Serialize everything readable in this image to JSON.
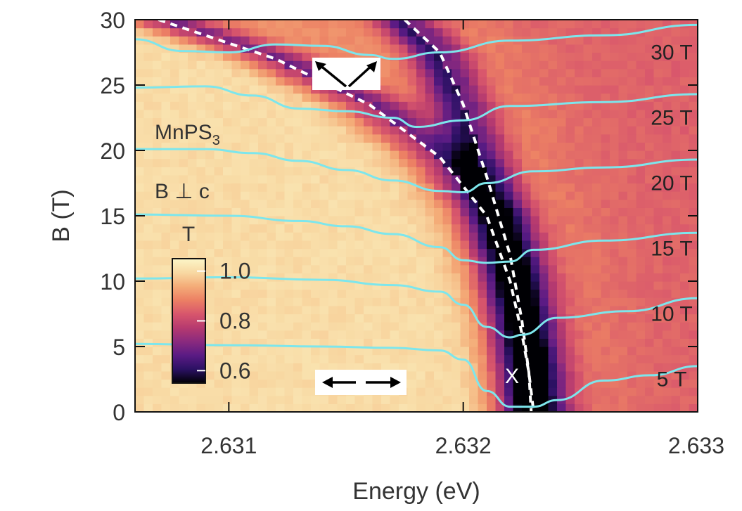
{
  "chart_data": {
    "type": "heatmap",
    "title": "",
    "xlabel": "Energy (eV)",
    "ylabel": "B (T)",
    "xlim": [
      2.6306,
      2.633
    ],
    "ylim": [
      0,
      30
    ],
    "x_ticks": [
      {
        "value": 2.631,
        "label": "2.631"
      },
      {
        "value": 2.632,
        "label": "2.632"
      },
      {
        "value": 2.633,
        "label": "2.633"
      }
    ],
    "y_ticks": [
      {
        "value": 0,
        "label": "0"
      },
      {
        "value": 5,
        "label": "5"
      },
      {
        "value": 10,
        "label": "10"
      },
      {
        "value": 15,
        "label": "15"
      },
      {
        "value": 20,
        "label": "20"
      },
      {
        "value": 25,
        "label": "25"
      },
      {
        "value": 30,
        "label": "30"
      }
    ],
    "colorbar": {
      "title": "T",
      "range": [
        0.55,
        1.05
      ],
      "ticks": [
        {
          "value": 1.0,
          "label": "1.0"
        },
        {
          "value": 0.8,
          "label": "0.8"
        },
        {
          "value": 0.6,
          "label": "0.6"
        }
      ],
      "colors": [
        "#000004",
        "#2b1163",
        "#5a1b84",
        "#8a2a7e",
        "#b63a6f",
        "#d8566c",
        "#ec8064",
        "#f4ac78",
        "#f8d9a3",
        "#fcf6c8"
      ]
    },
    "material_label": {
      "base": "MnPS",
      "sub": "3"
    },
    "geometry_label": "B ⊥ c",
    "exciton_label": "X",
    "spectra_color": "#7de6ec",
    "dashed_line_color": "#ffffff",
    "dashed_curves": [
      {
        "name": "lower-branch",
        "points": [
          [
            2.6307,
            30
          ],
          [
            2.6312,
            27
          ],
          [
            2.6316,
            23.5
          ],
          [
            2.6319,
            19.5
          ],
          [
            2.6321,
            15
          ],
          [
            2.6322,
            10
          ],
          [
            2.63225,
            6
          ],
          [
            2.63228,
            3
          ],
          [
            2.6323,
            0
          ]
        ]
      },
      {
        "name": "upper-branch",
        "points": [
          [
            2.63175,
            30
          ],
          [
            2.6319,
            27.5
          ],
          [
            2.632,
            23.5
          ],
          [
            2.6321,
            18
          ],
          [
            2.6322,
            12
          ],
          [
            2.63225,
            7
          ],
          [
            2.63228,
            3
          ],
          [
            2.63229,
            0
          ]
        ]
      }
    ],
    "spectra": [
      {
        "field": 30,
        "label": "30 T",
        "offset": 27.5,
        "points": [
          [
            2.6306,
            28.5
          ],
          [
            2.6308,
            27.6
          ],
          [
            2.631,
            27.5
          ],
          [
            2.6312,
            28.1
          ],
          [
            2.6314,
            28.0
          ],
          [
            2.6316,
            27.3
          ],
          [
            2.6317,
            27.0
          ],
          [
            2.6319,
            27.5
          ],
          [
            2.6322,
            28.4
          ],
          [
            2.6326,
            28.8
          ],
          [
            2.633,
            29.6
          ]
        ]
      },
      {
        "field": 25,
        "label": "25 T",
        "offset": 22.5,
        "points": [
          [
            2.6306,
            24.8
          ],
          [
            2.6309,
            24.9
          ],
          [
            2.6311,
            24.2
          ],
          [
            2.6313,
            23.2
          ],
          [
            2.6315,
            23.0
          ],
          [
            2.6317,
            22.5
          ],
          [
            2.6318,
            21.8
          ],
          [
            2.632,
            22.3
          ],
          [
            2.6322,
            23.4
          ],
          [
            2.6326,
            23.7
          ],
          [
            2.633,
            24.3
          ]
        ]
      },
      {
        "field": 20,
        "label": "20 T",
        "offset": 17.5,
        "points": [
          [
            2.6306,
            20.1
          ],
          [
            2.6309,
            20.1
          ],
          [
            2.6311,
            19.8
          ],
          [
            2.6313,
            19.2
          ],
          [
            2.6315,
            18.5
          ],
          [
            2.6317,
            17.7
          ],
          [
            2.6319,
            16.9
          ],
          [
            2.632,
            16.8
          ],
          [
            2.6321,
            17.5
          ],
          [
            2.6323,
            18.4
          ],
          [
            2.6326,
            18.7
          ],
          [
            2.633,
            19.3
          ]
        ]
      },
      {
        "field": 15,
        "label": "15 T",
        "offset": 12.5,
        "points": [
          [
            2.6306,
            15.1
          ],
          [
            2.631,
            15.0
          ],
          [
            2.6313,
            14.6
          ],
          [
            2.6315,
            14.2
          ],
          [
            2.6317,
            13.6
          ],
          [
            2.6319,
            12.6
          ],
          [
            2.632,
            11.6
          ],
          [
            2.6321,
            11.4
          ],
          [
            2.6322,
            11.5
          ],
          [
            2.6323,
            12.4
          ],
          [
            2.6326,
            13.1
          ],
          [
            2.633,
            13.7
          ]
        ]
      },
      {
        "field": 10,
        "label": "10 T",
        "offset": 7.5,
        "points": [
          [
            2.6306,
            10.2
          ],
          [
            2.631,
            10.3
          ],
          [
            2.6314,
            10.1
          ],
          [
            2.6317,
            9.7
          ],
          [
            2.6319,
            9.2
          ],
          [
            2.632,
            8.2
          ],
          [
            2.6321,
            6.5
          ],
          [
            2.6322,
            5.7
          ],
          [
            2.63225,
            5.9
          ],
          [
            2.6324,
            7.2
          ],
          [
            2.6327,
            7.7
          ],
          [
            2.633,
            8.7
          ]
        ]
      },
      {
        "field": 5,
        "label": "5 T",
        "offset": 2.5,
        "points": [
          [
            2.6306,
            5.2
          ],
          [
            2.631,
            5.1
          ],
          [
            2.6314,
            5.0
          ],
          [
            2.6317,
            4.9
          ],
          [
            2.6319,
            4.7
          ],
          [
            2.632,
            4.0
          ],
          [
            2.6321,
            1.6
          ],
          [
            2.6322,
            0.4
          ],
          [
            2.6323,
            0.4
          ],
          [
            2.6324,
            0.9
          ],
          [
            2.6326,
            2.4
          ],
          [
            2.6328,
            2.8
          ],
          [
            2.633,
            3.5
          ]
        ]
      }
    ],
    "polarization_icons": [
      {
        "name": "circular-polarization",
        "symbol": "↖ ↗"
      },
      {
        "name": "linear-polarization",
        "symbol": "⟵ ⟶"
      }
    ]
  }
}
